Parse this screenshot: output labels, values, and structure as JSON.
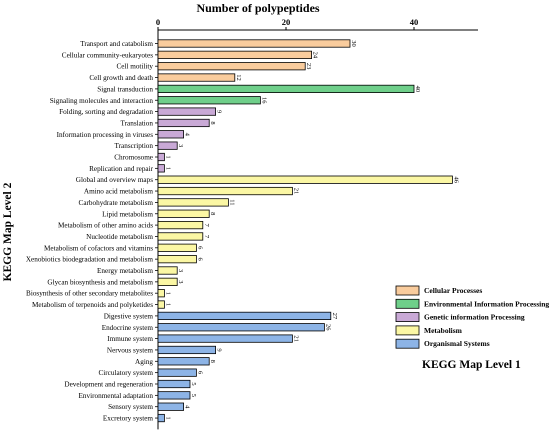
{
  "chart_data": {
    "type": "bar",
    "orientation": "horizontal",
    "xlabel": "Number of polypeptides",
    "ylabel": "KEGG Map Level 2",
    "xlim": [
      0,
      50
    ],
    "xticks": [
      "0",
      "20",
      "40"
    ],
    "legend_title": "KEGG Map Level 1",
    "legend_position": "right",
    "groups": [
      {
        "name": "Cellular Processes",
        "color": "#f9cc9d"
      },
      {
        "name": "Environmental Information Processing",
        "color": "#6fcf8a"
      },
      {
        "name": "Genetic information Processing",
        "color": "#c9a9d6"
      },
      {
        "name": "Metabolism",
        "color": "#fbf7a4"
      },
      {
        "name": "Organismal Systems",
        "color": "#8db4e6"
      }
    ],
    "bars": [
      {
        "label": "Transport and catabolism",
        "value": 30,
        "value_label": "30",
        "group": 0
      },
      {
        "label": "Cellular community-eukaryotes",
        "value": 24,
        "value_label": "24",
        "group": 0
      },
      {
        "label": "Cell motility",
        "value": 23,
        "value_label": "23",
        "group": 0
      },
      {
        "label": "Cell growth and death",
        "value": 12,
        "value_label": "12",
        "group": 0
      },
      {
        "label": "Signal transduction",
        "value": 40,
        "value_label": "40",
        "group": 1
      },
      {
        "label": "Signaling molecules and interaction",
        "value": 16,
        "value_label": "16",
        "group": 1
      },
      {
        "label": "Folding, sorting and degradation",
        "value": 9,
        "value_label": "9",
        "group": 2
      },
      {
        "label": "Translation",
        "value": 8,
        "value_label": "8",
        "group": 2
      },
      {
        "label": "Information processing in viruses",
        "value": 4,
        "value_label": "4",
        "group": 2
      },
      {
        "label": "Transcription",
        "value": 3,
        "value_label": "3",
        "group": 2
      },
      {
        "label": "Chromosome",
        "value": 1,
        "value_label": "1",
        "group": 2
      },
      {
        "label": "Replication and repair",
        "value": 1,
        "value_label": "1",
        "group": 2
      },
      {
        "label": "Global and overview maps",
        "value": 46,
        "value_label": "46",
        "group": 3
      },
      {
        "label": "Amino acid metabolism",
        "value": 21,
        "value_label": "21",
        "group": 3
      },
      {
        "label": "Carbohydrate metabolism",
        "value": 11,
        "value_label": "11",
        "group": 3
      },
      {
        "label": "Lipid metabolism",
        "value": 8,
        "value_label": "8",
        "group": 3
      },
      {
        "label": "Metabolism of other amino acids",
        "value": 7,
        "value_label": "7",
        "group": 3
      },
      {
        "label": "Nucleotide metabolism",
        "value": 7,
        "value_label": "7",
        "group": 3
      },
      {
        "label": "Metabolism of cofactors and vitamins",
        "value": 6,
        "value_label": "6",
        "group": 3
      },
      {
        "label": "Xenobiotics biodegradation and metabolism",
        "value": 6,
        "value_label": "6",
        "group": 3
      },
      {
        "label": "Energy metabolism",
        "value": 3,
        "value_label": "3",
        "group": 3
      },
      {
        "label": "Glycan biosynthesis and metabolism",
        "value": 3,
        "value_label": "3",
        "group": 3
      },
      {
        "label": "Biosynthesis of other secondary metabolites",
        "value": 1,
        "value_label": "1",
        "group": 3
      },
      {
        "label": "Metabolism of terpenoids and polyketides",
        "value": 1,
        "value_label": "1",
        "group": 3
      },
      {
        "label": "Digestive system",
        "value": 27,
        "value_label": "27",
        "group": 4
      },
      {
        "label": "Endocrine system",
        "value": 26,
        "value_label": "26",
        "group": 4
      },
      {
        "label": "Immune system",
        "value": 21,
        "value_label": "21",
        "group": 4
      },
      {
        "label": "Nervous system",
        "value": 9,
        "value_label": "9",
        "group": 4
      },
      {
        "label": "Aging",
        "value": 8,
        "value_label": "8",
        "group": 4
      },
      {
        "label": "Circulatory system",
        "value": 6,
        "value_label": "6",
        "group": 4
      },
      {
        "label": "Development and regeneration",
        "value": 5,
        "value_label": "5",
        "group": 4
      },
      {
        "label": "Environmental adaptation",
        "value": 5,
        "value_label": "5",
        "group": 4
      },
      {
        "label": "Sensory system",
        "value": 4,
        "value_label": "4",
        "group": 4
      },
      {
        "label": "Excretory system",
        "value": 1,
        "value_label": "1",
        "group": 4
      }
    ]
  }
}
